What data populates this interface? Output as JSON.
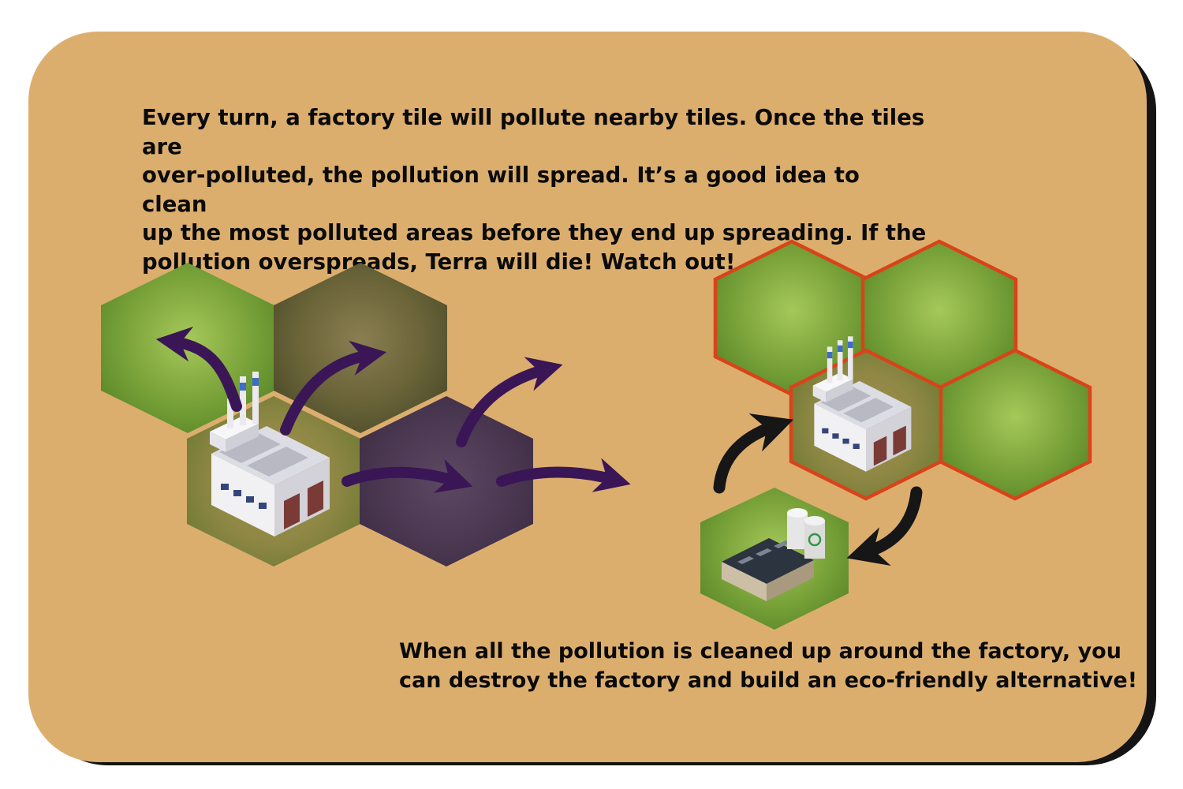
{
  "instructions": {
    "intro_text": "Every turn, a factory tile will pollute nearby tiles. Once the tiles are\nover-polluted, the pollution will spread. It’s a good idea to clean\nup the most polluted areas before they end up spreading. If the\npollution overspreads, Terra will die! Watch out!",
    "outro_text": "When all the pollution is cleaned up around the factory, you\ncan destroy the factory and build an eco-friendly alternative!"
  },
  "colors": {
    "card_background": "#dcae6e",
    "card_shadow": "#141414",
    "clean_tile": "#76a236",
    "dirty_tile": "#5f5a36",
    "polluted_tile": "#4f3a55",
    "pollution_arrow": "#3a1656",
    "cycle_arrow": "#161616",
    "highlight_border": "#d9431a"
  },
  "icons": {
    "factory": "factory-icon",
    "eco_building": "recycling-plant-icon",
    "recycle_symbol": "recycle-icon"
  }
}
